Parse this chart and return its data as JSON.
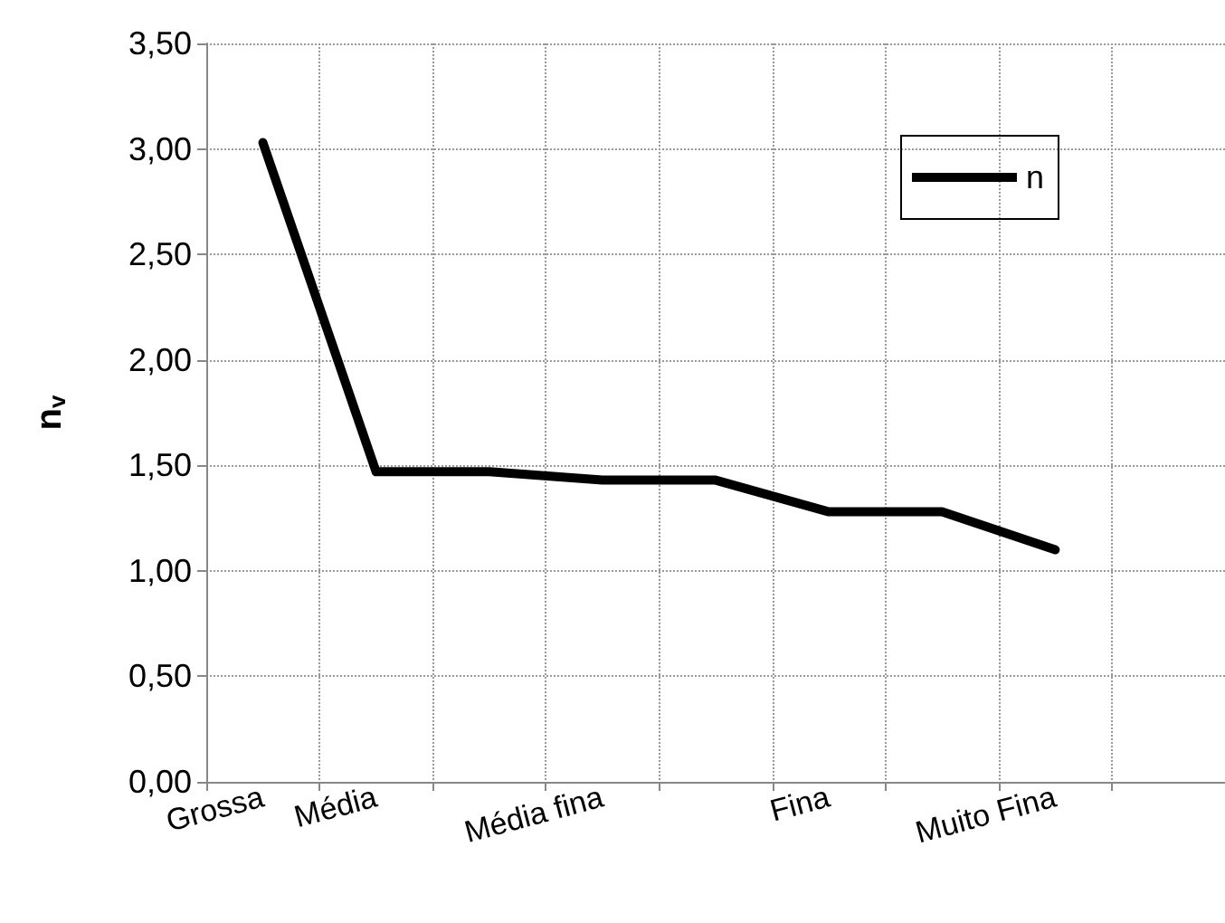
{
  "chart_data": {
    "type": "line",
    "ylabel": "n$_{v}$",
    "categories": [
      "Grossa",
      "Média",
      null,
      "Média fina",
      null,
      "Fina",
      null,
      "Muito Fina",
      null
    ],
    "series": [
      {
        "name": "n",
        "color": "#000000",
        "values": [
          3.03,
          1.47,
          1.47,
          1.43,
          1.43,
          1.28,
          1.28,
          1.1,
          null
        ]
      }
    ],
    "ylim": [
      0,
      3.5
    ],
    "yticks": [
      {
        "value": 0,
        "label": "0,00"
      },
      {
        "value": 0.5,
        "label": "0,50"
      },
      {
        "value": 1,
        "label": "1,00"
      },
      {
        "value": 1.5,
        "label": "1,50"
      },
      {
        "value": 2,
        "label": "2,00"
      },
      {
        "value": 2.5,
        "label": "2,50"
      },
      {
        "value": 3,
        "label": "3,00"
      },
      {
        "value": 3.5,
        "label": "3,50"
      }
    ],
    "grid": true,
    "legend": "top right",
    "marker": "none",
    "line_style": "solid"
  }
}
